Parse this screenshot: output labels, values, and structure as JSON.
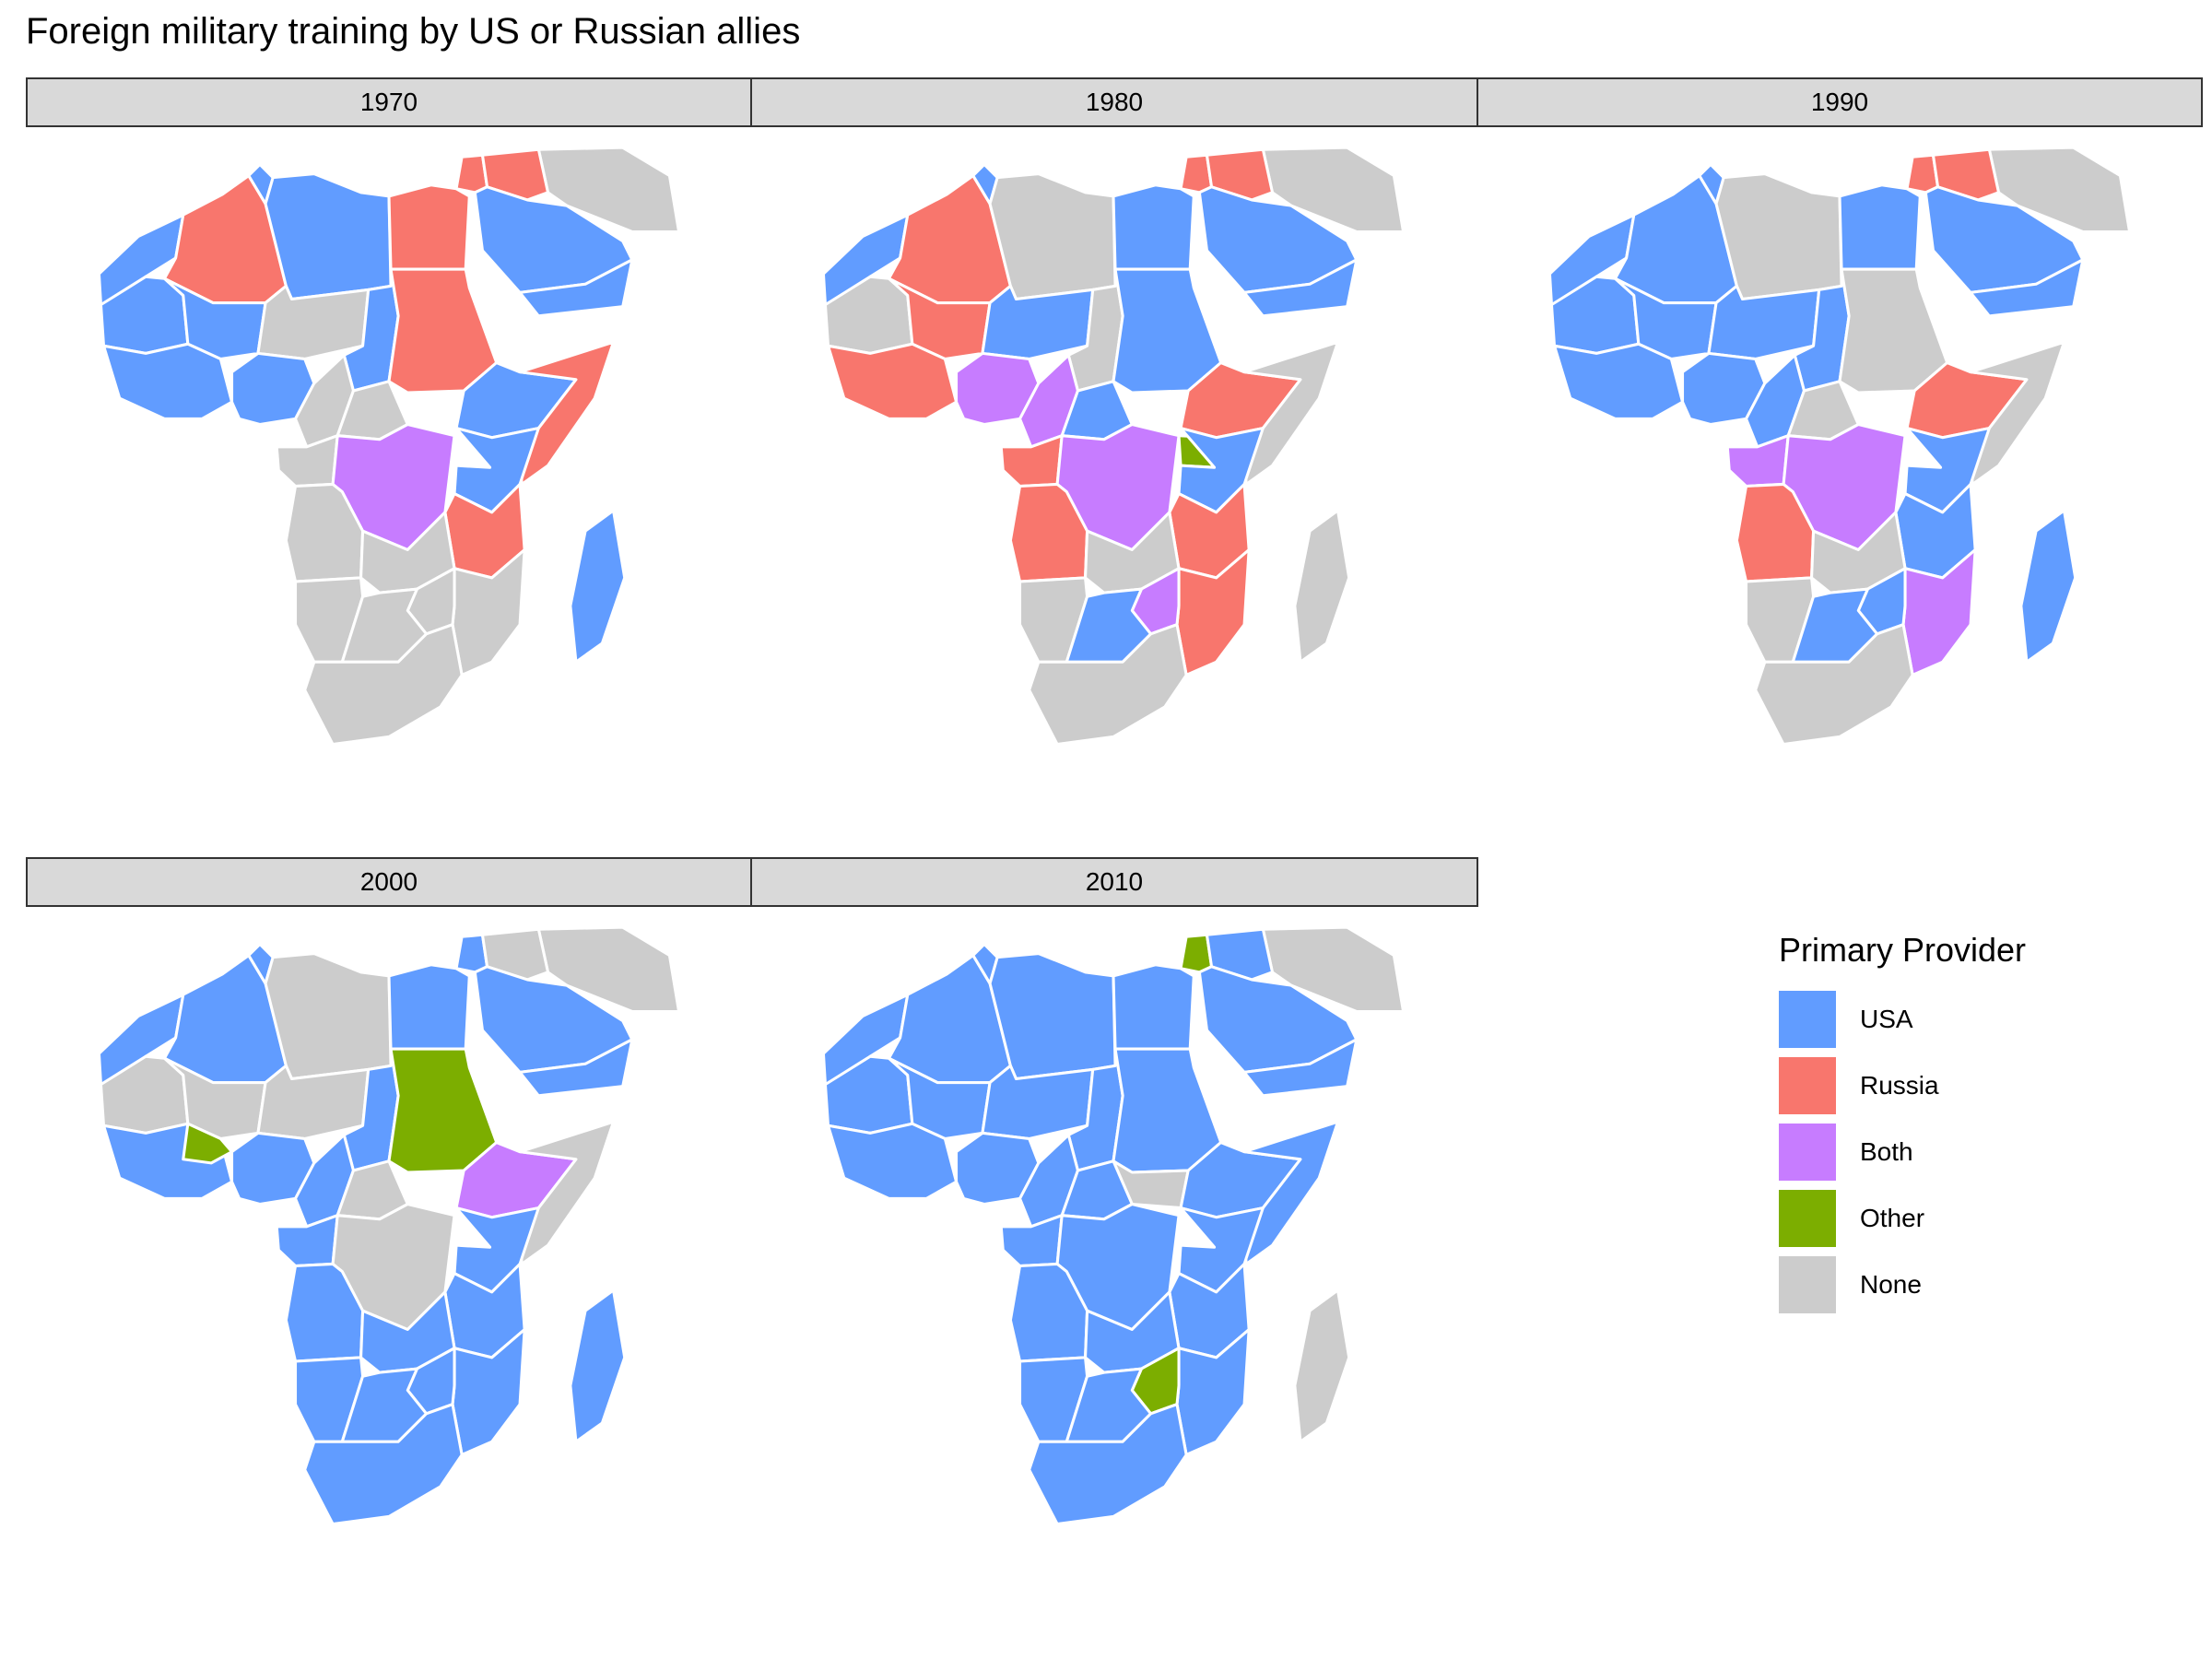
{
  "title": "Foreign military training by US or Russian allies",
  "legend": {
    "title": "Primary Provider",
    "items": [
      {
        "key": "usa",
        "label": "USA",
        "color": "#619CFF"
      },
      {
        "key": "russia",
        "label": "Russia",
        "color": "#F8766D"
      },
      {
        "key": "both",
        "label": "Both",
        "color": "#C77CFF"
      },
      {
        "key": "other",
        "label": "Other",
        "color": "#7CAE00"
      },
      {
        "key": "none",
        "label": "None",
        "color": "#CCCCCC"
      }
    ]
  },
  "panels": [
    {
      "label": "1970",
      "regions": {
        "morocco": "usa",
        "algeria": "russia",
        "tunisia": "usa",
        "libya": "usa",
        "egypt": "russia",
        "levant": "russia",
        "iraq": "russia",
        "arabia": "usa",
        "yemen": "usa",
        "iran": "none",
        "mauritania": "usa",
        "mali": "usa",
        "niger": "none",
        "chad": "usa",
        "sudan": "russia",
        "west_coast": "usa",
        "nigeria": "usa",
        "cameroon": "none",
        "car": "none",
        "ethiopia": "usa",
        "somalia": "russia",
        "gabon": "none",
        "drc": "both",
        "kenya": "usa",
        "tanzania": "russia",
        "angola": "none",
        "zambia": "none",
        "mozambique": "none",
        "namibia": "none",
        "botswana": "none",
        "zimbabwe": "none",
        "south_africa": "none",
        "madagascar": "usa"
      }
    },
    {
      "label": "1980",
      "regions": {
        "morocco": "usa",
        "algeria": "russia",
        "tunisia": "usa",
        "libya": "none",
        "egypt": "usa",
        "levant": "russia",
        "iraq": "russia",
        "arabia": "usa",
        "yemen": "usa",
        "iran": "none",
        "mauritania": "none",
        "mali": "russia",
        "niger": "usa",
        "chad": "none",
        "sudan": "usa",
        "west_coast": "russia",
        "nigeria": "both",
        "cameroon": "both",
        "car": "usa",
        "ethiopia": "russia",
        "somalia": "none",
        "gabon": "russia",
        "drc": "both",
        "kenya": "usa",
        "tanzania": "russia",
        "angola": "russia",
        "zambia": "none",
        "mozambique": "russia",
        "namibia": "none",
        "botswana": "usa",
        "zimbabwe": "both",
        "south_africa": "none",
        "madagascar": "none",
        "uganda": "other"
      }
    },
    {
      "label": "1990",
      "regions": {
        "morocco": "usa",
        "algeria": "usa",
        "tunisia": "usa",
        "libya": "none",
        "egypt": "usa",
        "levant": "russia",
        "iraq": "russia",
        "arabia": "usa",
        "yemen": "usa",
        "iran": "none",
        "mauritania": "usa",
        "mali": "usa",
        "niger": "usa",
        "chad": "usa",
        "sudan": "none",
        "west_coast": "usa",
        "nigeria": "usa",
        "cameroon": "usa",
        "car": "none",
        "ethiopia": "russia",
        "somalia": "none",
        "gabon": "both",
        "drc": "both",
        "kenya": "usa",
        "tanzania": "usa",
        "angola": "russia",
        "zambia": "none",
        "mozambique": "both",
        "namibia": "none",
        "botswana": "usa",
        "zimbabwe": "usa",
        "south_africa": "none",
        "madagascar": "usa"
      }
    },
    {
      "label": "2000",
      "regions": {
        "morocco": "usa",
        "algeria": "usa",
        "tunisia": "usa",
        "libya": "none",
        "egypt": "usa",
        "levant": "usa",
        "iraq": "none",
        "arabia": "usa",
        "yemen": "usa",
        "iran": "none",
        "mauritania": "none",
        "mali": "none",
        "niger": "none",
        "chad": "usa",
        "sudan": "other",
        "west_coast": "usa",
        "nigeria": "usa",
        "cameroon": "usa",
        "car": "none",
        "ethiopia": "both",
        "somalia": "none",
        "gabon": "usa",
        "drc": "none",
        "kenya": "usa",
        "tanzania": "usa",
        "angola": "usa",
        "zambia": "usa",
        "mozambique": "usa",
        "namibia": "usa",
        "botswana": "usa",
        "zimbabwe": "usa",
        "south_africa": "usa",
        "madagascar": "usa",
        "burkina": "other"
      }
    },
    {
      "label": "2010",
      "regions": {
        "morocco": "usa",
        "algeria": "usa",
        "tunisia": "usa",
        "libya": "usa",
        "egypt": "usa",
        "levant": "other",
        "iraq": "usa",
        "arabia": "usa",
        "yemen": "usa",
        "iran": "none",
        "mauritania": "usa",
        "mali": "usa",
        "niger": "usa",
        "chad": "usa",
        "sudan": "usa",
        "west_coast": "usa",
        "nigeria": "usa",
        "cameroon": "usa",
        "car": "usa",
        "ethiopia": "usa",
        "somalia": "usa",
        "gabon": "usa",
        "drc": "usa",
        "kenya": "usa",
        "tanzania": "usa",
        "angola": "usa",
        "zambia": "usa",
        "mozambique": "usa",
        "namibia": "usa",
        "botswana": "usa",
        "zimbabwe": "other",
        "south_africa": "usa",
        "madagascar": "none",
        "south_sudan": "none"
      }
    }
  ]
}
